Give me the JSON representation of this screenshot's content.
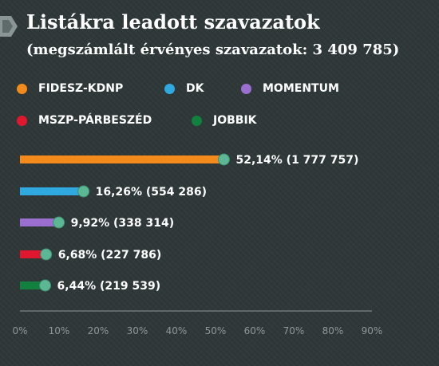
{
  "header": {
    "title": "Listákra leadott szavazatok",
    "subtitle": "(megszámlált érvényes szavazatok: 3 409 785)"
  },
  "legend": [
    {
      "label": "FIDESZ-KDNP",
      "color": "#f28a1c"
    },
    {
      "label": "DK",
      "color": "#2fa9e0"
    },
    {
      "label": "MOMENTUM",
      "color": "#9b6fd0"
    },
    {
      "label": "MSZP-PÁRBESZÉD",
      "color": "#e0182f"
    },
    {
      "label": "JOBBIK",
      "color": "#12803e"
    }
  ],
  "chart_data": {
    "type": "bar",
    "orientation": "horizontal",
    "title": "Listákra leadott szavazatok",
    "subtitle": "(megszámlált érvényes szavazatok: 3 409 785)",
    "categories": [
      "FIDESZ-KDNP",
      "DK",
      "MOMENTUM",
      "MSZP-PÁRBESZÉD",
      "JOBBIK"
    ],
    "values": [
      52.14,
      16.26,
      9.92,
      6.68,
      6.44
    ],
    "labels": [
      "52,14% (1 777 757)",
      "16,26% (554 286)",
      "9,92% (338 314)",
      "6,68% (227 786)",
      "6,44% (219 539)"
    ],
    "colors": [
      "#f28a1c",
      "#2fa9e0",
      "#9b6fd0",
      "#e0182f",
      "#12803e"
    ],
    "marker_color": "#5cb894",
    "xlim": [
      0,
      90
    ],
    "xticks": [
      0,
      10,
      20,
      30,
      40,
      50,
      60,
      70,
      80,
      90
    ],
    "xtick_labels": [
      "0%",
      "10%",
      "20%",
      "30%",
      "40%",
      "50%",
      "60%",
      "70%",
      "80%",
      "90%"
    ],
    "xlabel": "",
    "ylabel": "",
    "grid": false,
    "legend_position": "top"
  }
}
